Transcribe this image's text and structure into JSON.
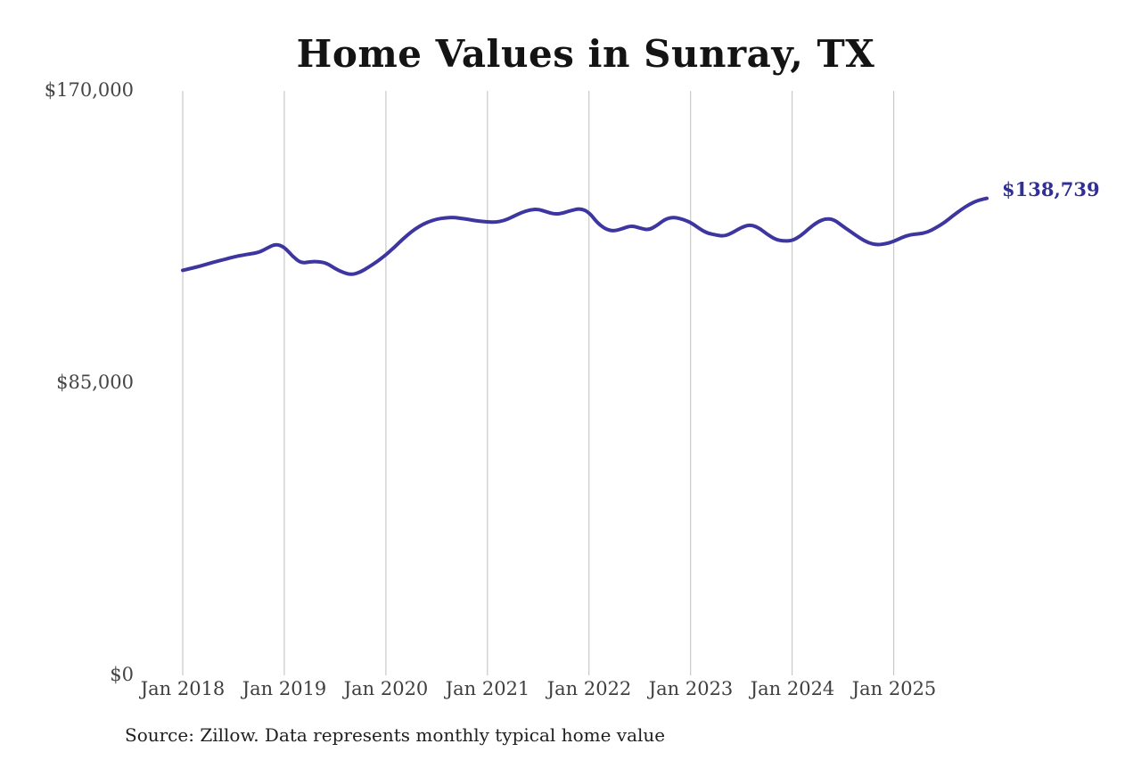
{
  "title": "Home Values in Sunray, TX",
  "source_note": "Source: Zillow. Data represents monthly typical home value",
  "colors": {
    "line": "#3d35a0",
    "end_label": "#312e96",
    "gridline": "#c9c9c9",
    "axis_text": "#424242",
    "title_text": "#141414"
  },
  "chart_data": {
    "type": "line",
    "title": "Home Values in Sunray, TX",
    "xlabel": "",
    "ylabel": "",
    "ylim": [
      0,
      170000
    ],
    "y_tick_labels": [
      "$0",
      "$85,000",
      "$170,000"
    ],
    "y_tick_values": [
      0,
      85000,
      170000
    ],
    "x_tick_labels": [
      "Jan 2018",
      "Jan 2019",
      "Jan 2020",
      "Jan 2021",
      "Jan 2022",
      "Jan 2023",
      "Jan 2024",
      "Jan 2025"
    ],
    "grid": "vertical-gridlines-only",
    "legend": "none",
    "annotation_last_value": "$138,739",
    "series": [
      {
        "name": "Monthly typical home value",
        "x_start": "2018-01",
        "x_interval": "monthly",
        "x_range": [
          "2018-01",
          "2025-12"
        ],
        "values": [
          117800,
          118400,
          119000,
          119700,
          120400,
          121000,
          121700,
          122200,
          122600,
          123000,
          124300,
          125500,
          124600,
          121800,
          119900,
          120300,
          120400,
          119900,
          118300,
          117100,
          116500,
          117300,
          118800,
          120400,
          122300,
          124500,
          126900,
          129000,
          130700,
          131900,
          132700,
          133100,
          133200,
          132900,
          132500,
          132100,
          131900,
          131800,
          132300,
          133400,
          134600,
          135400,
          135600,
          134800,
          134100,
          134500,
          135300,
          135800,
          134700,
          131600,
          129700,
          129200,
          130000,
          130800,
          130100,
          129500,
          130800,
          132700,
          133300,
          132700,
          131800,
          130000,
          128600,
          128100,
          127700,
          128800,
          130300,
          131100,
          130300,
          128400,
          126800,
          126300,
          126400,
          127800,
          130000,
          131900,
          132900,
          132500,
          130600,
          128900,
          127200,
          125800,
          125200,
          125500,
          126200,
          127400,
          128200,
          128400,
          128900,
          130200,
          131700,
          133700,
          135500,
          137100,
          138200,
          138739
        ]
      }
    ]
  }
}
